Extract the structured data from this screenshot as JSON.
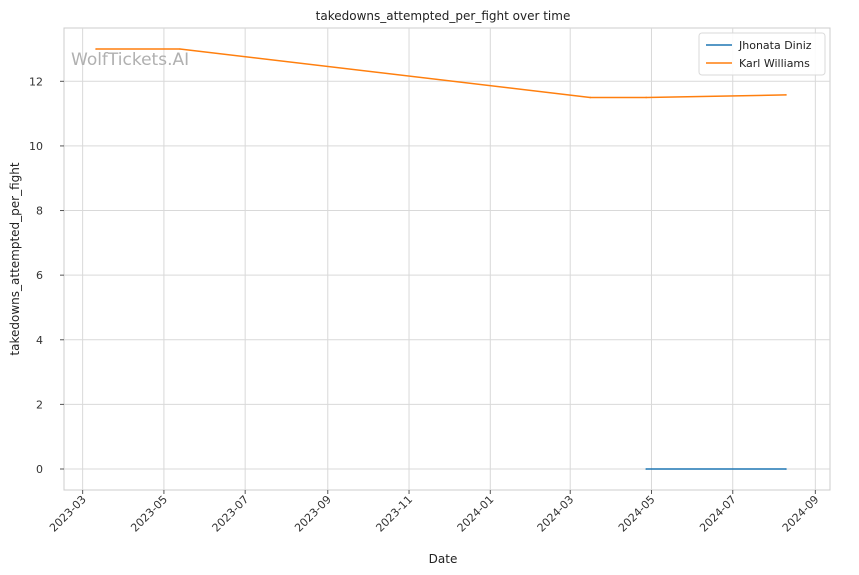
{
  "chart_data": {
    "type": "line",
    "title": "takedowns_attempted_per_fight over time",
    "xlabel": "Date",
    "ylabel": "takedowns_attempted_per_fight",
    "x_range": [
      "2023-02-15",
      "2024-09-12"
    ],
    "ylim": [
      -0.65,
      13.65
    ],
    "x_ticks": [
      "2023-03",
      "2023-05",
      "2023-07",
      "2023-09",
      "2023-11",
      "2024-01",
      "2024-03",
      "2024-05",
      "2024-07",
      "2024-09"
    ],
    "y_ticks": [
      "0",
      "2",
      "4",
      "6",
      "8",
      "10",
      "12"
    ],
    "grid": true,
    "legend_position": "top-right",
    "watermark": "WolfTickets.AI",
    "series": [
      {
        "name": "Jhonata Diniz",
        "color": "#1f77b4",
        "points": [
          {
            "x": "2024-04-27",
            "y": 0
          },
          {
            "x": "2024-08-10",
            "y": 0
          }
        ]
      },
      {
        "name": "Karl Williams",
        "color": "#ff7f0e",
        "points": [
          {
            "x": "2023-03-11",
            "y": 13
          },
          {
            "x": "2023-05-13",
            "y": 13
          },
          {
            "x": "2024-03-16",
            "y": 11.5
          },
          {
            "x": "2024-04-27",
            "y": 11.5
          },
          {
            "x": "2024-08-10",
            "y": 11.58
          }
        ]
      }
    ]
  }
}
